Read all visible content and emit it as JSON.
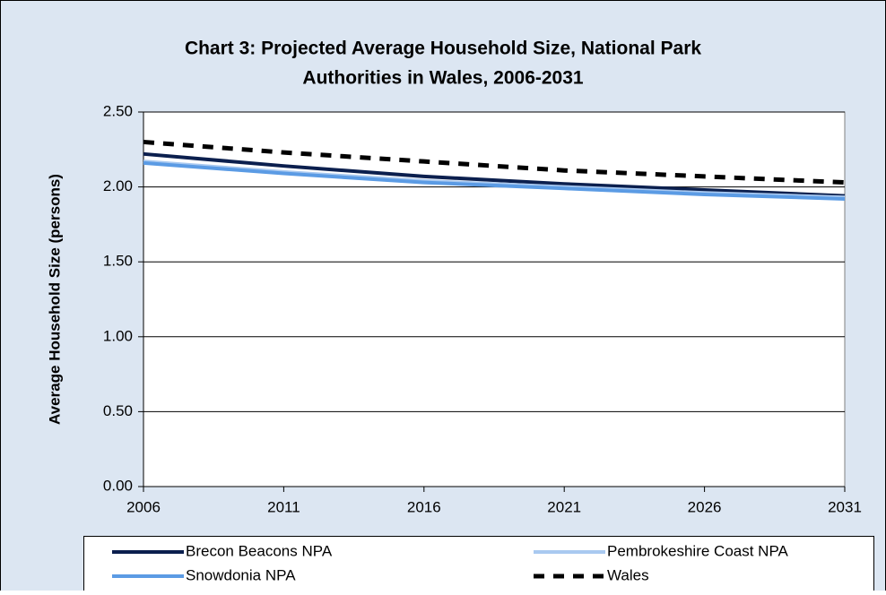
{
  "chart_data": {
    "type": "line",
    "title": [
      "Chart 3: Projected Average Household Size, National Park",
      "Authorities in Wales, 2006-2031"
    ],
    "y_label": "Average Household Size (persons)",
    "x": [
      2006,
      2011,
      2016,
      2021,
      2026,
      2031
    ],
    "xlim": [
      2006,
      2031
    ],
    "xticks": [
      2006,
      2011,
      2016,
      2021,
      2026,
      2031
    ],
    "ylim": [
      0,
      2.5
    ],
    "yticks": [
      {
        "value": 0,
        "label": "0.00"
      },
      {
        "value": 0.5,
        "label": "0.50"
      },
      {
        "value": 1,
        "label": "1.00"
      },
      {
        "value": 1.5,
        "label": "1.50"
      },
      {
        "value": 2,
        "label": "2.00"
      },
      {
        "value": 2.5,
        "label": "2.50"
      }
    ],
    "grid": true,
    "legend": "bottom",
    "series": [
      {
        "name": "Brecon Beacons NPA",
        "color": "#0b1f4e",
        "dash": false,
        "values": [
          2.22,
          2.14,
          2.07,
          2.02,
          1.98,
          1.94
        ]
      },
      {
        "name": "Pembrokeshire Coast NPA",
        "color": "#a9c9f0",
        "dash": false,
        "values": [
          2.17,
          2.1,
          2.04,
          2.0,
          1.96,
          1.93
        ]
      },
      {
        "name": "Snowdonia NPA",
        "color": "#5b9be4",
        "dash": false,
        "values": [
          2.16,
          2.09,
          2.03,
          1.99,
          1.95,
          1.92
        ]
      },
      {
        "name": "Wales",
        "color": "#000000",
        "dash": true,
        "values": [
          2.3,
          2.23,
          2.17,
          2.11,
          2.07,
          2.03
        ]
      }
    ]
  }
}
